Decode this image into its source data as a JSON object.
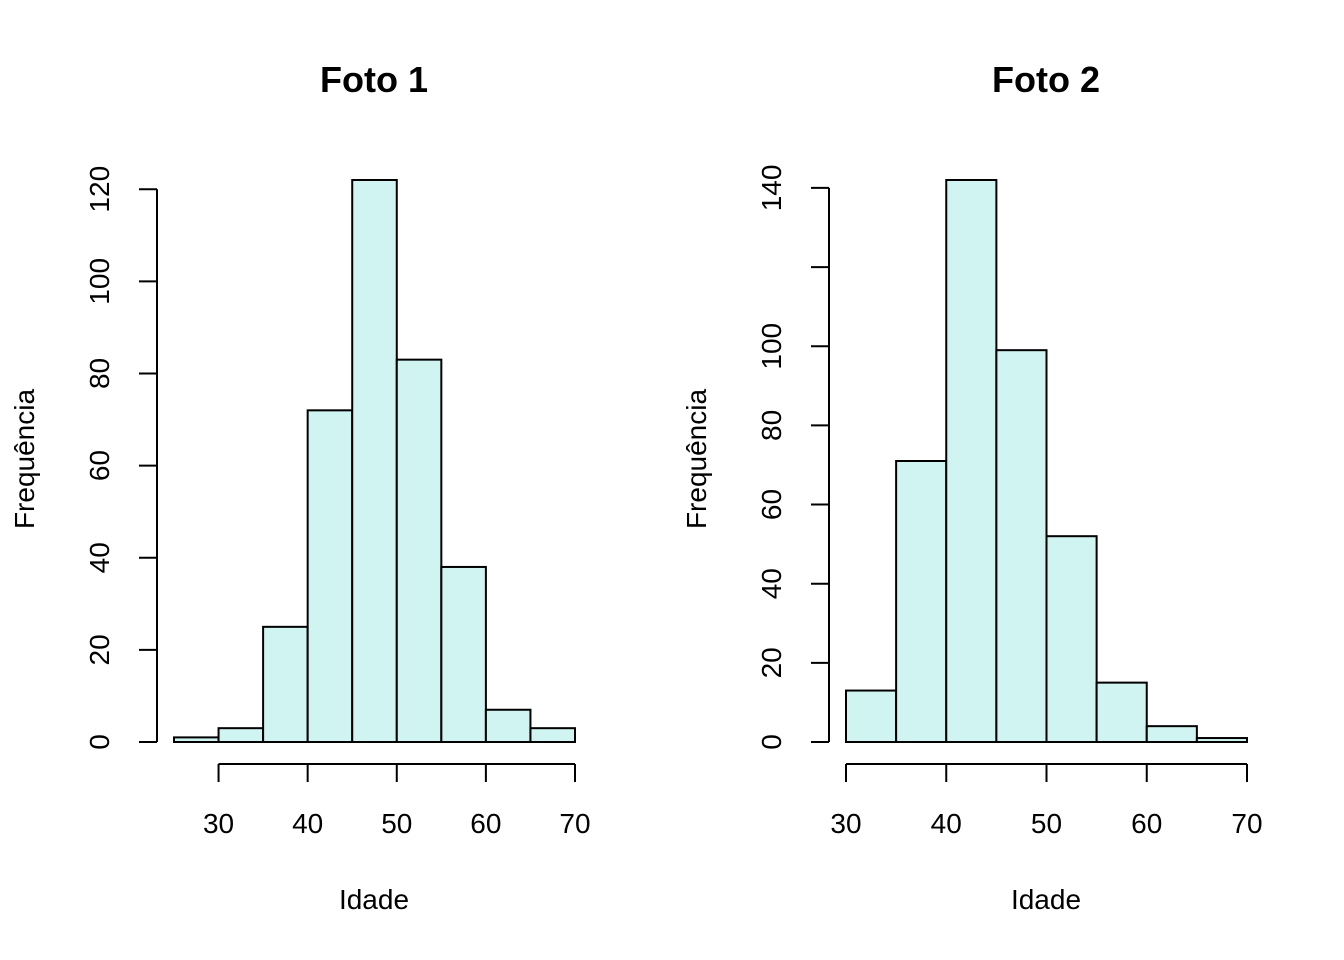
{
  "colors": {
    "bar_fill": "#cff4f2",
    "bar_stroke": "#000000",
    "axis": "#000000",
    "background": "#ffffff"
  },
  "chart_data": [
    {
      "type": "bar",
      "subtype": "histogram",
      "title": "Foto 1",
      "xlabel": "Idade",
      "ylabel": "Frequência",
      "bins": [
        [
          25,
          30
        ],
        [
          30,
          35
        ],
        [
          35,
          40
        ],
        [
          40,
          45
        ],
        [
          45,
          50
        ],
        [
          50,
          55
        ],
        [
          55,
          60
        ],
        [
          60,
          65
        ],
        [
          65,
          70
        ]
      ],
      "values": [
        1,
        3,
        25,
        72,
        122,
        83,
        38,
        7,
        3
      ],
      "xticks": [
        30,
        40,
        50,
        60,
        70
      ],
      "yticks": [
        0,
        20,
        40,
        60,
        80,
        100,
        120
      ],
      "xlim": [
        25,
        70
      ],
      "ylim": [
        0,
        122
      ],
      "grid": false,
      "legend": "none"
    },
    {
      "type": "bar",
      "subtype": "histogram",
      "title": "Foto 2",
      "xlabel": "Idade",
      "ylabel": "Frequência",
      "bins": [
        [
          30,
          35
        ],
        [
          35,
          40
        ],
        [
          40,
          45
        ],
        [
          45,
          50
        ],
        [
          50,
          55
        ],
        [
          55,
          60
        ],
        [
          60,
          65
        ],
        [
          65,
          70
        ]
      ],
      "values": [
        13,
        71,
        142,
        99,
        52,
        15,
        4,
        1
      ],
      "xticks": [
        30,
        40,
        50,
        60,
        70
      ],
      "yticks": [
        0,
        20,
        40,
        60,
        80,
        100,
        120,
        140
      ],
      "ytick_labels": [
        "0",
        "20",
        "40",
        "60",
        "80",
        "100",
        "",
        "140"
      ],
      "xlim": [
        30,
        70
      ],
      "ylim": [
        0,
        142
      ],
      "grid": false,
      "legend": "none"
    }
  ]
}
